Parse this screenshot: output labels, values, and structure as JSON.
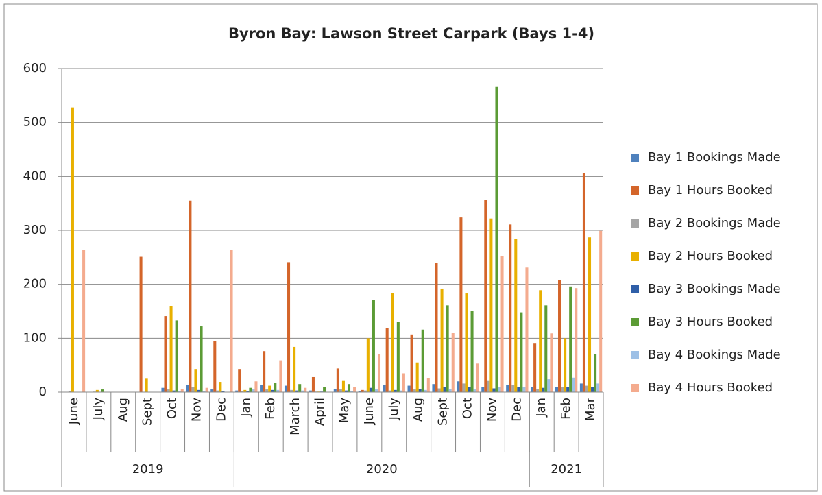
{
  "chart_data": {
    "type": "bar",
    "title": "Byron Bay: Lawson Street Carpark (Bays 1-4)",
    "category_groups": [
      {
        "name": "2019",
        "categories": [
          "June",
          "July",
          "Aug",
          "Sept",
          "Oct",
          "Nov",
          "Dec"
        ]
      },
      {
        "name": "2020",
        "categories": [
          "Jan",
          "Feb",
          "March",
          "April",
          "May",
          "June",
          "July",
          "Aug",
          "Sept",
          "Oct",
          "Nov",
          "Dec"
        ]
      },
      {
        "name": "2021",
        "categories": [
          "Jan",
          "Feb",
          "Mar"
        ]
      }
    ],
    "series": [
      {
        "name": "Bay 1 Bookings Made",
        "color": "#4f81bd",
        "values": [
          0,
          0,
          0,
          0,
          8,
          14,
          5,
          3,
          14,
          12,
          3,
          6,
          2,
          14,
          12,
          15,
          20,
          10,
          14,
          9,
          10,
          16
        ]
      },
      {
        "name": "Bay 1 Hours Booked",
        "color": "#d4652a",
        "values": [
          0,
          0,
          0,
          251,
          141,
          355,
          95,
          43,
          76,
          241,
          28,
          44,
          4,
          119,
          107,
          239,
          324,
          357,
          311,
          90,
          208,
          406
        ]
      },
      {
        "name": "Bay 2 Bookings Made",
        "color": "#a5a5a5",
        "values": [
          2,
          1,
          0,
          0,
          5,
          10,
          3,
          2,
          5,
          4,
          1,
          5,
          3,
          3,
          5,
          7,
          16,
          22,
          14,
          6,
          10,
          12
        ]
      },
      {
        "name": "Bay 2 Hours Booked",
        "color": "#e8b000",
        "values": [
          528,
          4,
          0,
          25,
          159,
          43,
          19,
          4,
          12,
          84,
          1,
          22,
          100,
          184,
          55,
          192,
          183,
          322,
          284,
          189,
          100,
          287
        ]
      },
      {
        "name": "Bay 3 Bookings Made",
        "color": "#2f5fa8",
        "values": [
          0,
          0,
          0,
          0,
          3,
          4,
          2,
          2,
          4,
          3,
          1,
          3,
          8,
          4,
          6,
          10,
          10,
          7,
          10,
          8,
          10,
          10
        ]
      },
      {
        "name": "Bay 3 Hours Booked",
        "color": "#5b9b35",
        "values": [
          0,
          5,
          0,
          0,
          133,
          122,
          0,
          8,
          17,
          15,
          9,
          15,
          171,
          130,
          116,
          161,
          150,
          566,
          148,
          161,
          196,
          70
        ]
      },
      {
        "name": "Bay 4 Bookings Made",
        "color": "#9dc0e6",
        "values": [
          0,
          0,
          0,
          0,
          2,
          2,
          0,
          5,
          4,
          3,
          0,
          2,
          5,
          3,
          4,
          6,
          5,
          10,
          10,
          24,
          27,
          16
        ]
      },
      {
        "name": "Bay 4 Hours Booked",
        "color": "#f4ab8e",
        "values": [
          264,
          0,
          0,
          0,
          6,
          8,
          264,
          20,
          59,
          8,
          0,
          10,
          71,
          35,
          26,
          110,
          53,
          252,
          231,
          109,
          193,
          299
        ]
      }
    ],
    "ylim": [
      0,
      600
    ],
    "yticks": [
      0,
      100,
      200,
      300,
      400,
      500,
      600
    ],
    "grid": true,
    "legend": "right"
  }
}
